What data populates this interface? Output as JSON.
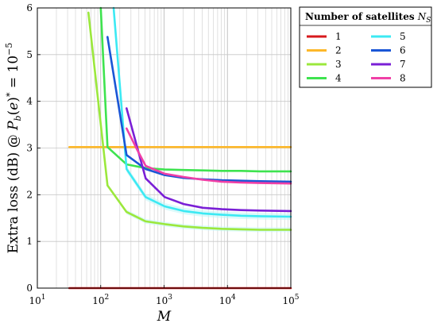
{
  "chart_data": {
    "type": "line",
    "xscale": "log",
    "xlim": [
      10,
      100000
    ],
    "ylim": [
      0,
      6
    ],
    "xlabel": "M",
    "ylabel": "Extra loss (dB) @ P_b(e)* = 10^-5",
    "x_ticks": [
      {
        "value": 10,
        "base": "10",
        "exp": "1"
      },
      {
        "value": 100,
        "base": "10",
        "exp": "2"
      },
      {
        "value": 1000,
        "base": "10",
        "exp": "3"
      },
      {
        "value": 10000,
        "base": "10",
        "exp": "4"
      },
      {
        "value": 100000,
        "base": "10",
        "exp": "5"
      }
    ],
    "y_ticks": [
      "0",
      "1",
      "2",
      "3",
      "4",
      "5",
      "6"
    ],
    "grid": true,
    "legend": {
      "title": "Number of  satellites  N_S",
      "placement": "right"
    },
    "series": [
      {
        "name": "1",
        "color": "#d7191c",
        "x": [
          32,
          100000
        ],
        "y": [
          0.0,
          0.0
        ]
      },
      {
        "name": "2",
        "color": "#fdb82a",
        "x": [
          32,
          100000
        ],
        "y": [
          3.02,
          3.02
        ]
      },
      {
        "name": "3",
        "color": "#9be83c",
        "x": [
          64,
          128,
          256,
          512,
          1024,
          2048,
          4096,
          8192,
          16384,
          32768,
          100000
        ],
        "y": [
          5.9,
          2.2,
          1.63,
          1.43,
          1.37,
          1.32,
          1.29,
          1.27,
          1.26,
          1.25,
          1.25
        ]
      },
      {
        "name": "4",
        "color": "#3ee34f",
        "x": [
          100,
          128,
          256,
          512,
          1024,
          2048,
          4096,
          8192,
          16384,
          32768,
          100000
        ],
        "y": [
          6.0,
          3.02,
          2.65,
          2.57,
          2.54,
          2.53,
          2.52,
          2.51,
          2.51,
          2.5,
          2.5
        ]
      },
      {
        "name": "5",
        "color": "#3ce9f3",
        "x": [
          160,
          256,
          512,
          1024,
          2048,
          4096,
          8192,
          16384,
          32768,
          100000
        ],
        "y": [
          6.0,
          2.55,
          1.95,
          1.75,
          1.65,
          1.6,
          1.57,
          1.55,
          1.54,
          1.53
        ]
      },
      {
        "name": "6",
        "color": "#1a56d6",
        "x": [
          128,
          256,
          512,
          1024,
          2048,
          4096,
          8192,
          16384,
          32768,
          100000
        ],
        "y": [
          5.38,
          2.85,
          2.55,
          2.42,
          2.36,
          2.33,
          2.31,
          2.3,
          2.29,
          2.28
        ]
      },
      {
        "name": "7",
        "color": "#7a1fd6",
        "x": [
          256,
          512,
          1024,
          2048,
          4096,
          8192,
          16384,
          32768,
          100000
        ],
        "y": [
          3.85,
          2.35,
          1.95,
          1.8,
          1.72,
          1.69,
          1.67,
          1.66,
          1.65
        ]
      },
      {
        "name": "8",
        "color": "#f03fa6",
        "x": [
          256,
          380,
          512,
          1024,
          2048,
          4096,
          8192,
          16384,
          32768,
          100000
        ],
        "y": [
          3.42,
          2.95,
          2.62,
          2.45,
          2.38,
          2.32,
          2.28,
          2.26,
          2.25,
          2.24
        ]
      }
    ]
  }
}
